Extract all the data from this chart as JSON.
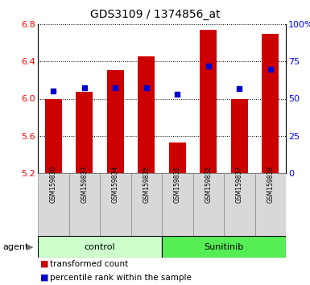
{
  "title": "GDS3109 / 1374856_at",
  "samples": [
    "GSM159830",
    "GSM159833",
    "GSM159834",
    "GSM159835",
    "GSM159831",
    "GSM159832",
    "GSM159837",
    "GSM159838"
  ],
  "bar_values": [
    6.0,
    6.07,
    6.31,
    6.45,
    5.53,
    6.74,
    6.0,
    6.7
  ],
  "bar_bottom": 5.2,
  "percentile_values": [
    6.08,
    6.12,
    6.12,
    6.12,
    6.05,
    6.35,
    6.11,
    6.32
  ],
  "groups": [
    {
      "label": "control",
      "indices": [
        0,
        1,
        2,
        3
      ],
      "color": "#ccffcc"
    },
    {
      "label": "Sunitinib",
      "indices": [
        4,
        5,
        6,
        7
      ],
      "color": "#55ee55"
    }
  ],
  "ylim": [
    5.2,
    6.8
  ],
  "yticks": [
    5.2,
    5.6,
    6.0,
    6.4,
    6.8
  ],
  "bar_color": "#cc0000",
  "percentile_color": "#0000cc",
  "bar_width": 0.55,
  "xlabel": "agent"
}
